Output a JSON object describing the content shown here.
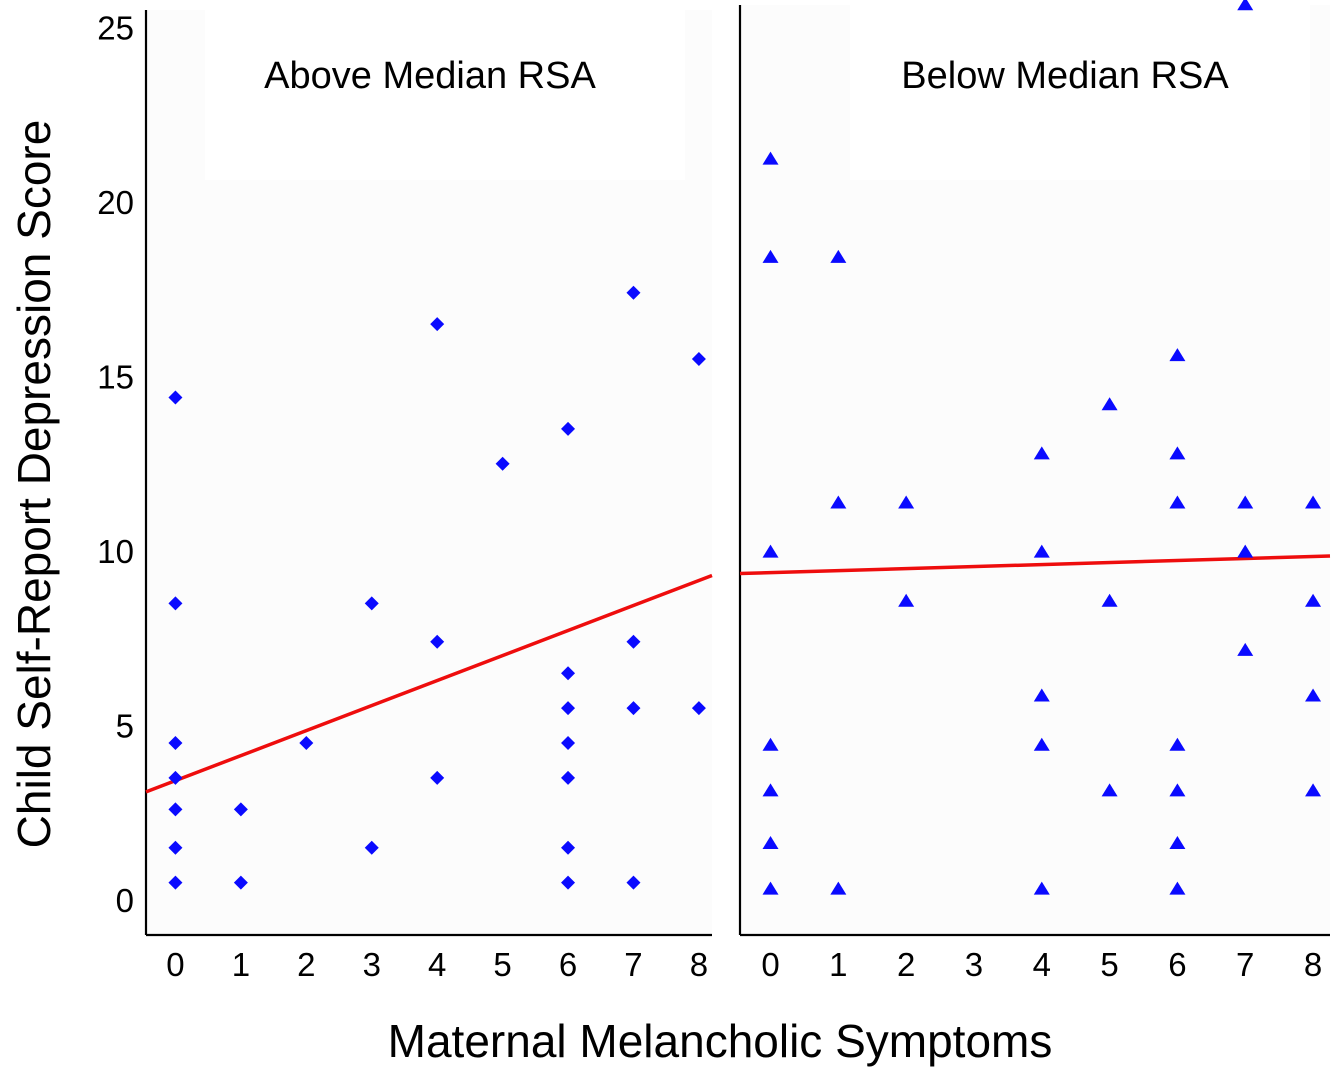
{
  "figure": {
    "ylabel": "Child Self-Report Depression Score",
    "xlabel": "Maternal Melancholic Symptoms"
  },
  "colors": {
    "points": "#0a0aff",
    "fit_line": "#ee0d0d",
    "axis": "#000000",
    "panel_background": "#fcfcfc"
  },
  "chart_data": [
    {
      "type": "scatter",
      "title": "Above Median RSA",
      "marker": "diamond",
      "x_ticks": [
        0,
        1,
        2,
        3,
        4,
        5,
        6,
        7,
        8
      ],
      "y_ticks": [
        0,
        5,
        10,
        15,
        20,
        25
      ],
      "xlim": [
        -0.45,
        8.2
      ],
      "ylim": [
        -1,
        25.5
      ],
      "grid": false,
      "legend": "none",
      "points": [
        {
          "x": 0,
          "y": 14.4
        },
        {
          "x": 0,
          "y": 8.5
        },
        {
          "x": 0,
          "y": 4.5
        },
        {
          "x": 0,
          "y": 3.5
        },
        {
          "x": 0,
          "y": 2.6
        },
        {
          "x": 0,
          "y": 1.5
        },
        {
          "x": 0,
          "y": 0.5
        },
        {
          "x": 1,
          "y": 2.6
        },
        {
          "x": 1,
          "y": 0.5
        },
        {
          "x": 2,
          "y": 4.5
        },
        {
          "x": 3,
          "y": 8.5
        },
        {
          "x": 3,
          "y": 1.5
        },
        {
          "x": 4,
          "y": 16.5
        },
        {
          "x": 4,
          "y": 7.4
        },
        {
          "x": 4,
          "y": 3.5
        },
        {
          "x": 5,
          "y": 12.5
        },
        {
          "x": 6,
          "y": 13.5
        },
        {
          "x": 6,
          "y": 6.5
        },
        {
          "x": 6,
          "y": 5.5
        },
        {
          "x": 6,
          "y": 4.5
        },
        {
          "x": 6,
          "y": 3.5
        },
        {
          "x": 6,
          "y": 1.5
        },
        {
          "x": 6,
          "y": 0.5
        },
        {
          "x": 7,
          "y": 17.4
        },
        {
          "x": 7,
          "y": 7.4
        },
        {
          "x": 7,
          "y": 5.5
        },
        {
          "x": 7,
          "y": 0.5
        },
        {
          "x": 8,
          "y": 15.5
        },
        {
          "x": 8,
          "y": 5.5
        }
      ],
      "fit_line": {
        "x": [
          -0.45,
          8.2
        ],
        "y": [
          3.1,
          9.3
        ]
      }
    },
    {
      "type": "scatter",
      "title": "Below Median RSA",
      "marker": "triangle",
      "x_ticks": [
        0,
        1,
        2,
        3,
        4,
        5,
        6,
        7,
        8
      ],
      "y_ticks": [],
      "xlim": [
        -0.45,
        8.25
      ],
      "ylim": [
        -1,
        25.5
      ],
      "grid": false,
      "legend": "none",
      "points": [
        {
          "x": 0,
          "y": 21.1
        },
        {
          "x": 0,
          "y": 18.3
        },
        {
          "x": 0,
          "y": 9.9
        },
        {
          "x": 0,
          "y": 4.4
        },
        {
          "x": 0,
          "y": 3.1
        },
        {
          "x": 0,
          "y": 1.6
        },
        {
          "x": 0,
          "y": 0.3
        },
        {
          "x": 1,
          "y": 18.3
        },
        {
          "x": 1,
          "y": 11.3
        },
        {
          "x": 1,
          "y": 0.3
        },
        {
          "x": 2,
          "y": 11.3
        },
        {
          "x": 2,
          "y": 8.5
        },
        {
          "x": 4,
          "y": 12.7
        },
        {
          "x": 4,
          "y": 9.9
        },
        {
          "x": 4,
          "y": 5.8
        },
        {
          "x": 4,
          "y": 4.4
        },
        {
          "x": 4,
          "y": 0.3
        },
        {
          "x": 5,
          "y": 14.1
        },
        {
          "x": 5,
          "y": 8.5
        },
        {
          "x": 5,
          "y": 3.1
        },
        {
          "x": 6,
          "y": 15.5
        },
        {
          "x": 6,
          "y": 12.7
        },
        {
          "x": 6,
          "y": 11.3
        },
        {
          "x": 6,
          "y": 4.4
        },
        {
          "x": 6,
          "y": 3.1
        },
        {
          "x": 6,
          "y": 1.6
        },
        {
          "x": 6,
          "y": 0.3
        },
        {
          "x": 7,
          "y": 25.5
        },
        {
          "x": 7,
          "y": 11.3
        },
        {
          "x": 7,
          "y": 9.9
        },
        {
          "x": 7,
          "y": 7.1
        },
        {
          "x": 8,
          "y": 11.3
        },
        {
          "x": 8,
          "y": 8.5
        },
        {
          "x": 8,
          "y": 5.8
        },
        {
          "x": 8,
          "y": 3.1
        }
      ],
      "fit_line": {
        "x": [
          -0.45,
          8.25
        ],
        "y": [
          9.3,
          9.8
        ]
      }
    }
  ]
}
